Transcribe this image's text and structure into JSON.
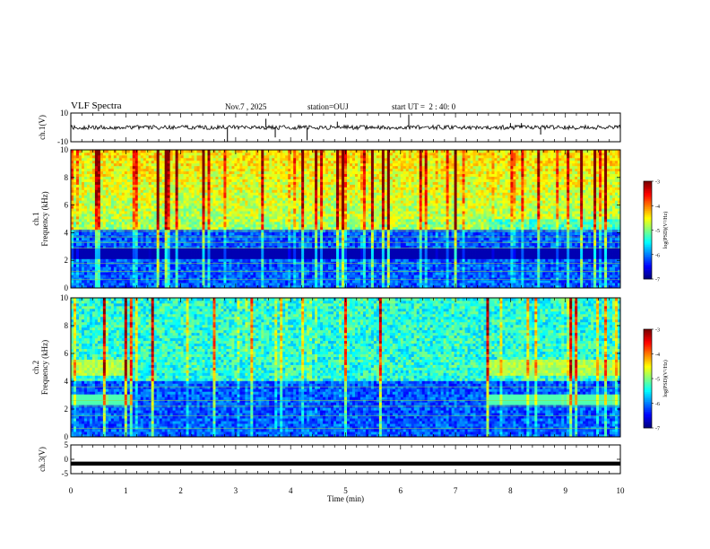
{
  "header": {
    "title": "VLF Spectra",
    "date": "Nov.7 , 2025",
    "station": "station=OUJ",
    "start_time": "start UT =  2 : 40: 0"
  },
  "chart_data": [
    {
      "type": "line",
      "title": "",
      "xlabel": "",
      "ylabel": "ch.1(V)",
      "xlim": [
        0,
        10
      ],
      "ylim": [
        -10,
        10
      ],
      "yticks": [
        "10",
        "-10"
      ],
      "series": [
        {
          "baseline": 0,
          "typical_amplitude": 1.5,
          "spikes": [
            {
              "t": 2.85,
              "v": -10
            },
            {
              "t": 3.55,
              "v": 6
            },
            {
              "t": 3.72,
              "v": -7
            },
            {
              "t": 4.3,
              "v": -9
            },
            {
              "t": 4.85,
              "v": 4
            },
            {
              "t": 6.15,
              "v": 9
            },
            {
              "t": 8.0,
              "v": 3
            },
            {
              "t": 8.2,
              "v": 3
            },
            {
              "t": 8.55,
              "v": -5
            }
          ]
        }
      ]
    },
    {
      "type": "heatmap",
      "title": "",
      "xlabel": "",
      "ylabel": "ch.1\nFrequency (kHz)",
      "xlim": [
        0,
        10
      ],
      "ylim": [
        0,
        10
      ],
      "yticks": [
        "0",
        "2",
        "4",
        "6",
        "8",
        "10"
      ],
      "colorbar": {
        "label": "log(PSD)(V²/Hz)",
        "ticks": [
          "-3",
          "-4",
          "-5",
          "-6",
          "-7"
        ],
        "range": [
          -7,
          -3
        ]
      },
      "features": {
        "low_band_khz": [
          0,
          4.2
        ],
        "quiet_from_min": 7.6
      }
    },
    {
      "type": "heatmap",
      "title": "",
      "xlabel": "",
      "ylabel": "ch.2\nFrequency (kHz)",
      "xlim": [
        0,
        10
      ],
      "ylim": [
        0,
        10
      ],
      "yticks": [
        "0",
        "2",
        "4",
        "6",
        "8",
        "10"
      ],
      "colorbar": {
        "label": "log(PSD)(V²/Hz)",
        "ticks": [
          "-3",
          "-4",
          "-5",
          "-6",
          "-7"
        ],
        "range": [
          -7,
          -3
        ]
      },
      "features": {
        "band_change_min": [
          1.1,
          7.6
        ],
        "band_khz": [
          4.5,
          5.5
        ]
      }
    },
    {
      "type": "line",
      "title": "",
      "xlabel": "Time (min)",
      "ylabel": "ch.3(V)",
      "xlim": [
        0,
        10
      ],
      "ylim": [
        -5,
        5
      ],
      "yticks": [
        "5",
        "0",
        "-5"
      ],
      "xticks": [
        "0",
        "1",
        "2",
        "3",
        "4",
        "5",
        "6",
        "7",
        "8",
        "9",
        "10"
      ],
      "series": [
        {
          "baseline": -1.5,
          "typical_amplitude": 0.1
        }
      ]
    }
  ]
}
